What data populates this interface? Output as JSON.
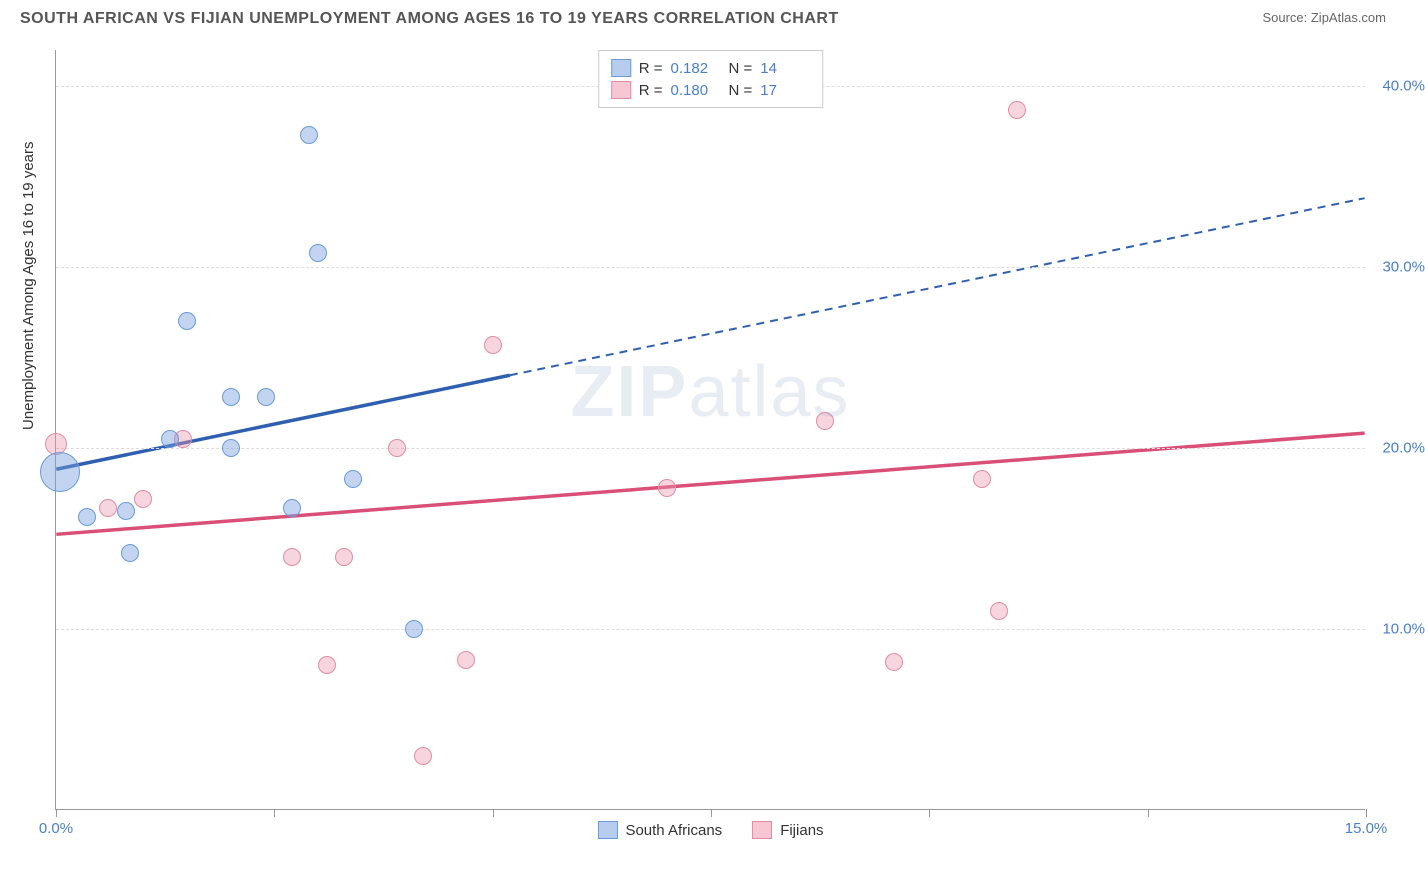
{
  "header": {
    "title": "SOUTH AFRICAN VS FIJIAN UNEMPLOYMENT AMONG AGES 16 TO 19 YEARS CORRELATION CHART",
    "source_label": "Source: ",
    "source_name": "ZipAtlas.com"
  },
  "chart": {
    "type": "scatter",
    "y_axis_label": "Unemployment Among Ages 16 to 19 years",
    "xlim": [
      0,
      15
    ],
    "ylim": [
      0,
      42
    ],
    "x_ticks": [
      0,
      2.5,
      5,
      7.5,
      10,
      12.5,
      15
    ],
    "x_tick_labels": [
      "0.0%",
      "",
      "",
      "",
      "",
      "",
      "15.0%"
    ],
    "y_ticks": [
      10,
      20,
      30,
      40
    ],
    "y_tick_labels": [
      "10.0%",
      "20.0%",
      "30.0%",
      "40.0%"
    ],
    "grid_color": "#dddddd",
    "axis_color": "#999999",
    "background_color": "#ffffff",
    "series": [
      {
        "name": "South Africans",
        "label": "South Africans",
        "fill_color": "rgba(120,160,220,0.45)",
        "stroke_color": "#6a9bd8",
        "trend_color": "#2f5fb0",
        "swatch_fill": "#b6cdef",
        "swatch_stroke": "#6a9bd8",
        "R": "0.182",
        "N": "14",
        "trend": {
          "x1": 0,
          "y1": 18.8,
          "x2_solid": 5.2,
          "y2_solid": 24.0,
          "x2": 15,
          "y2": 33.8
        },
        "points": [
          {
            "x": 0.05,
            "y": 18.7,
            "r": 20
          },
          {
            "x": 0.35,
            "y": 16.2,
            "r": 9
          },
          {
            "x": 0.8,
            "y": 16.5,
            "r": 9
          },
          {
            "x": 0.85,
            "y": 14.2,
            "r": 9
          },
          {
            "x": 1.3,
            "y": 20.5,
            "r": 9
          },
          {
            "x": 1.5,
            "y": 27.0,
            "r": 9
          },
          {
            "x": 2.0,
            "y": 20.0,
            "r": 9
          },
          {
            "x": 2.0,
            "y": 22.8,
            "r": 9
          },
          {
            "x": 2.4,
            "y": 22.8,
            "r": 9
          },
          {
            "x": 2.7,
            "y": 16.7,
            "r": 9
          },
          {
            "x": 2.9,
            "y": 37.3,
            "r": 9
          },
          {
            "x": 3.0,
            "y": 30.8,
            "r": 9
          },
          {
            "x": 3.4,
            "y": 18.3,
            "r": 9
          },
          {
            "x": 4.1,
            "y": 10.0,
            "r": 9
          }
        ]
      },
      {
        "name": "Fijians",
        "label": "Fijians",
        "fill_color": "rgba(235,150,175,0.40)",
        "stroke_color": "#e08ca5",
        "trend_color": "#d94f78",
        "swatch_fill": "#f6c6d3",
        "swatch_stroke": "#e08ca5",
        "R": "0.180",
        "N": "17",
        "trend": {
          "x1": 0,
          "y1": 15.2,
          "x2_solid": 15,
          "y2_solid": 20.8,
          "x2": 15,
          "y2": 20.8
        },
        "points": [
          {
            "x": 0.0,
            "y": 20.2,
            "r": 11
          },
          {
            "x": 0.6,
            "y": 16.7,
            "r": 9
          },
          {
            "x": 1.0,
            "y": 17.2,
            "r": 9
          },
          {
            "x": 1.45,
            "y": 20.5,
            "r": 9
          },
          {
            "x": 2.7,
            "y": 14.0,
            "r": 9
          },
          {
            "x": 3.1,
            "y": 8.0,
            "r": 9
          },
          {
            "x": 3.3,
            "y": 14.0,
            "r": 9
          },
          {
            "x": 3.9,
            "y": 20.0,
            "r": 9
          },
          {
            "x": 4.2,
            "y": 3.0,
            "r": 9
          },
          {
            "x": 4.7,
            "y": 8.3,
            "r": 9
          },
          {
            "x": 5.0,
            "y": 25.7,
            "r": 9
          },
          {
            "x": 7.0,
            "y": 17.8,
            "r": 9
          },
          {
            "x": 8.8,
            "y": 21.5,
            "r": 9
          },
          {
            "x": 9.6,
            "y": 8.2,
            "r": 9
          },
          {
            "x": 10.6,
            "y": 18.3,
            "r": 9
          },
          {
            "x": 10.8,
            "y": 11.0,
            "r": 9
          },
          {
            "x": 11.0,
            "y": 38.7,
            "r": 9
          }
        ]
      }
    ],
    "legend_top": {
      "r_label": "R =",
      "n_label": "N ="
    },
    "watermark": {
      "part1": "ZIP",
      "part2": "atlas"
    }
  }
}
